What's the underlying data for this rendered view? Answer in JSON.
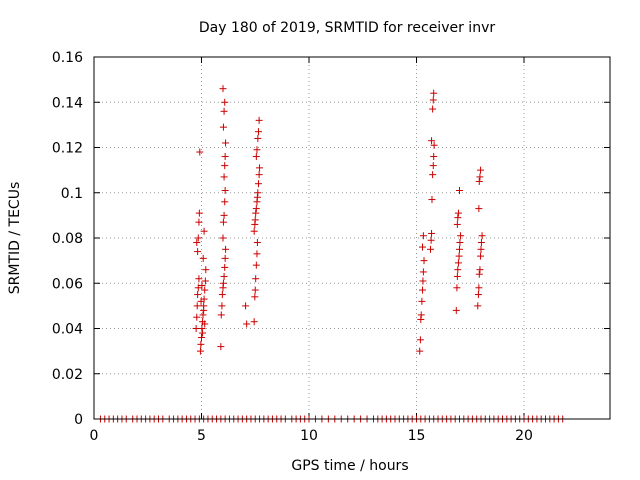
{
  "chart_data": {
    "type": "scatter",
    "title": "Day 180 of 2019, SRMTID for receiver invr",
    "xlabel": "GPS time / hours",
    "ylabel": "SRMTID / TECUs",
    "xlim": [
      0,
      24
    ],
    "ylim": [
      0,
      0.16
    ],
    "xticks": [
      0,
      5,
      10,
      15,
      20
    ],
    "yticks": [
      0,
      0.02,
      0.04,
      0.06,
      0.08,
      0.1,
      0.12,
      0.14,
      0.16
    ],
    "xtick_labels": [
      "0",
      "5",
      "10",
      "15",
      "20"
    ],
    "ytick_labels": [
      "0",
      "0.02",
      "0.04",
      "0.06",
      "0.08",
      "0.1",
      "0.12",
      "0.14",
      "0.16"
    ],
    "grid": true,
    "marker": "+",
    "color": "#cc0000",
    "series": [
      {
        "name": "SRMTID",
        "points": [
          [
            4.75,
            0.04
          ],
          [
            4.78,
            0.045
          ],
          [
            4.8,
            0.05
          ],
          [
            4.82,
            0.055
          ],
          [
            4.85,
            0.058
          ],
          [
            4.88,
            0.062
          ],
          [
            4.78,
            0.078
          ],
          [
            4.82,
            0.074
          ],
          [
            4.85,
            0.08
          ],
          [
            4.88,
            0.087
          ],
          [
            4.9,
            0.091
          ],
          [
            4.92,
            0.118
          ],
          [
            4.95,
            0.03
          ],
          [
            4.97,
            0.033
          ],
          [
            5.0,
            0.036
          ],
          [
            5.02,
            0.04
          ],
          [
            5.05,
            0.043
          ],
          [
            5.07,
            0.046
          ],
          [
            5.1,
            0.05
          ],
          [
            5.12,
            0.053
          ],
          [
            5.15,
            0.057
          ],
          [
            5.18,
            0.061
          ],
          [
            5.2,
            0.066
          ],
          [
            5.05,
            0.038
          ],
          [
            5.1,
            0.048
          ],
          [
            5.15,
            0.042
          ],
          [
            4.98,
            0.052
          ],
          [
            5.02,
            0.059
          ],
          [
            5.08,
            0.071
          ],
          [
            5.12,
            0.083
          ],
          [
            5.9,
            0.032
          ],
          [
            5.92,
            0.046
          ],
          [
            5.95,
            0.05
          ],
          [
            5.97,
            0.055
          ],
          [
            6.0,
            0.058
          ],
          [
            6.02,
            0.06
          ],
          [
            6.05,
            0.063
          ],
          [
            6.08,
            0.067
          ],
          [
            6.1,
            0.071
          ],
          [
            6.12,
            0.075
          ],
          [
            6.0,
            0.08
          ],
          [
            6.02,
            0.087
          ],
          [
            6.05,
            0.09
          ],
          [
            6.08,
            0.096
          ],
          [
            6.1,
            0.101
          ],
          [
            6.05,
            0.107
          ],
          [
            6.08,
            0.112
          ],
          [
            6.1,
            0.116
          ],
          [
            6.12,
            0.122
          ],
          [
            6.02,
            0.129
          ],
          [
            6.05,
            0.136
          ],
          [
            6.08,
            0.14
          ],
          [
            6.0,
            0.146
          ],
          [
            7.1,
            0.042
          ],
          [
            7.05,
            0.05
          ],
          [
            7.45,
            0.043
          ],
          [
            7.48,
            0.054
          ],
          [
            7.5,
            0.057
          ],
          [
            7.52,
            0.062
          ],
          [
            7.55,
            0.068
          ],
          [
            7.58,
            0.073
          ],
          [
            7.6,
            0.078
          ],
          [
            7.45,
            0.083
          ],
          [
            7.48,
            0.086
          ],
          [
            7.5,
            0.088
          ],
          [
            7.52,
            0.091
          ],
          [
            7.55,
            0.093
          ],
          [
            7.58,
            0.096
          ],
          [
            7.6,
            0.098
          ],
          [
            7.62,
            0.1
          ],
          [
            7.65,
            0.104
          ],
          [
            7.68,
            0.108
          ],
          [
            7.7,
            0.111
          ],
          [
            7.55,
            0.116
          ],
          [
            7.58,
            0.119
          ],
          [
            7.62,
            0.124
          ],
          [
            7.65,
            0.127
          ],
          [
            7.68,
            0.132
          ],
          [
            15.15,
            0.03
          ],
          [
            15.18,
            0.035
          ],
          [
            15.2,
            0.044
          ],
          [
            15.22,
            0.046
          ],
          [
            15.25,
            0.052
          ],
          [
            15.28,
            0.057
          ],
          [
            15.3,
            0.061
          ],
          [
            15.32,
            0.065
          ],
          [
            15.35,
            0.07
          ],
          [
            15.28,
            0.076
          ],
          [
            15.32,
            0.081
          ],
          [
            15.65,
            0.075
          ],
          [
            15.68,
            0.079
          ],
          [
            15.7,
            0.082
          ],
          [
            15.72,
            0.097
          ],
          [
            15.75,
            0.108
          ],
          [
            15.78,
            0.112
          ],
          [
            15.8,
            0.116
          ],
          [
            15.82,
            0.121
          ],
          [
            15.7,
            0.123
          ],
          [
            15.75,
            0.137
          ],
          [
            15.78,
            0.141
          ],
          [
            15.8,
            0.144
          ],
          [
            16.85,
            0.048
          ],
          [
            16.88,
            0.058
          ],
          [
            16.9,
            0.063
          ],
          [
            16.92,
            0.066
          ],
          [
            16.95,
            0.069
          ],
          [
            16.98,
            0.072
          ],
          [
            17.0,
            0.075
          ],
          [
            17.02,
            0.078
          ],
          [
            17.05,
            0.081
          ],
          [
            16.9,
            0.086
          ],
          [
            16.92,
            0.089
          ],
          [
            16.95,
            0.091
          ],
          [
            17.0,
            0.101
          ],
          [
            17.85,
            0.05
          ],
          [
            17.88,
            0.055
          ],
          [
            17.9,
            0.058
          ],
          [
            17.92,
            0.064
          ],
          [
            17.95,
            0.066
          ],
          [
            17.98,
            0.072
          ],
          [
            18.0,
            0.075
          ],
          [
            18.02,
            0.078
          ],
          [
            18.05,
            0.081
          ],
          [
            17.9,
            0.093
          ],
          [
            17.92,
            0.105
          ],
          [
            17.95,
            0.107
          ],
          [
            17.98,
            0.11
          ]
        ]
      }
    ],
    "zero_points_x": [
      0.3,
      0.5,
      0.7,
      0.9,
      1.1,
      1.3,
      1.5,
      1.8,
      2.0,
      2.2,
      2.4,
      2.6,
      2.8,
      3.0,
      3.2,
      3.5,
      3.7,
      3.9,
      4.1,
      4.3,
      4.5,
      4.7,
      4.9,
      5.1,
      5.3,
      5.5,
      5.7,
      5.9,
      6.1,
      6.3,
      6.5,
      6.7,
      6.9,
      7.1,
      7.3,
      7.5,
      7.7,
      7.9,
      8.1,
      8.3,
      8.5,
      8.7,
      8.9,
      9.2,
      9.4,
      9.6,
      9.8,
      10.0,
      10.3,
      10.6,
      10.9,
      11.2,
      11.5,
      11.8,
      12.1,
      12.4,
      12.7,
      13.0,
      13.2,
      13.4,
      13.6,
      13.8,
      14.0,
      14.2,
      14.4,
      14.6,
      14.8,
      15.0,
      15.2,
      15.4,
      15.6,
      15.8,
      16.0,
      16.2,
      16.4,
      16.6,
      16.8,
      17.0,
      17.2,
      17.4,
      17.6,
      17.8,
      18.0,
      18.2,
      18.4,
      18.6,
      18.8,
      19.0,
      19.2,
      19.4,
      19.6,
      19.8,
      20.0,
      20.2,
      20.4,
      20.6,
      20.8,
      21.0,
      21.2,
      21.4,
      21.6,
      21.8
    ]
  }
}
